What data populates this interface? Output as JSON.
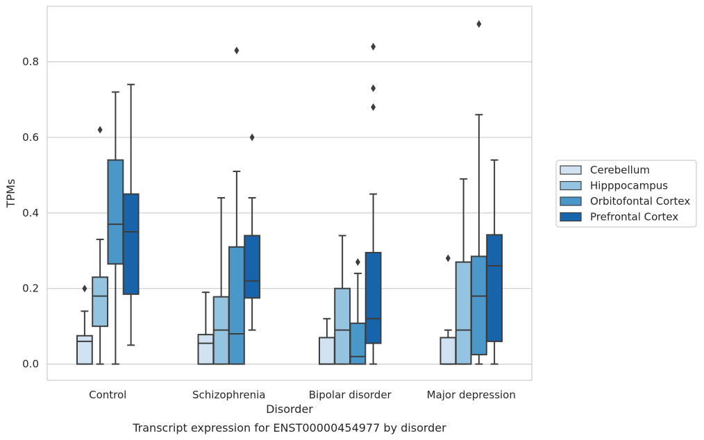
{
  "chart_data": {
    "type": "boxplot",
    "title": "",
    "caption": "Transcript expression for ENST00000454977 by disorder",
    "xlabel": "Disorder",
    "ylabel": "TPMs",
    "ylim": [
      -0.043,
      0.947
    ],
    "yticks": [
      "0.0",
      "0.2",
      "0.4",
      "0.6",
      "0.8"
    ],
    "ytick_values": [
      0.0,
      0.2,
      0.4,
      0.6,
      0.8
    ],
    "grid": "horizontal",
    "legend_position": "right",
    "categories": [
      "Control",
      "Schizophrenia",
      "Bipolar disorder",
      "Major depression"
    ],
    "series": [
      {
        "name": "Cerebellum",
        "color": "#d0e1f2",
        "boxes": [
          {
            "whislo": 0.0,
            "q1": 0.0,
            "med": 0.06,
            "q3": 0.075,
            "whishi": 0.14,
            "fliers": [
              0.2
            ]
          },
          {
            "whislo": 0.0,
            "q1": 0.0,
            "med": 0.055,
            "q3": 0.078,
            "whishi": 0.19,
            "fliers": []
          },
          {
            "whislo": 0.0,
            "q1": 0.0,
            "med": 0.0,
            "q3": 0.07,
            "whishi": 0.12,
            "fliers": []
          },
          {
            "whislo": 0.0,
            "q1": 0.0,
            "med": 0.0,
            "q3": 0.07,
            "whishi": 0.09,
            "fliers": [
              0.28
            ]
          }
        ]
      },
      {
        "name": "Hipppocampus",
        "color": "#94c4df",
        "boxes": [
          {
            "whislo": 0.0,
            "q1": 0.1,
            "med": 0.18,
            "q3": 0.23,
            "whishi": 0.33,
            "fliers": [
              0.62
            ]
          },
          {
            "whislo": 0.0,
            "q1": 0.0,
            "med": 0.09,
            "q3": 0.178,
            "whishi": 0.44,
            "fliers": []
          },
          {
            "whislo": 0.0,
            "q1": 0.0,
            "med": 0.09,
            "q3": 0.2,
            "whishi": 0.34,
            "fliers": []
          },
          {
            "whislo": 0.0,
            "q1": 0.0,
            "med": 0.09,
            "q3": 0.27,
            "whishi": 0.49,
            "fliers": []
          }
        ]
      },
      {
        "name": "Orbitofontal Cortex",
        "color": "#4a98c9",
        "boxes": [
          {
            "whislo": 0.0,
            "q1": 0.265,
            "med": 0.37,
            "q3": 0.54,
            "whishi": 0.72,
            "fliers": []
          },
          {
            "whislo": 0.0,
            "q1": 0.0,
            "med": 0.08,
            "q3": 0.31,
            "whishi": 0.51,
            "fliers": [
              0.83
            ]
          },
          {
            "whislo": 0.0,
            "q1": 0.0,
            "med": 0.02,
            "q3": 0.108,
            "whishi": 0.24,
            "fliers": [
              0.27
            ]
          },
          {
            "whislo": 0.0,
            "q1": 0.025,
            "med": 0.18,
            "q3": 0.285,
            "whishi": 0.66,
            "fliers": [
              0.9
            ]
          }
        ]
      },
      {
        "name": "Prefrontal Cortex",
        "color": "#1764ab",
        "boxes": [
          {
            "whislo": 0.05,
            "q1": 0.185,
            "med": 0.35,
            "q3": 0.45,
            "whishi": 0.74,
            "fliers": []
          },
          {
            "whislo": 0.09,
            "q1": 0.175,
            "med": 0.22,
            "q3": 0.34,
            "whishi": 0.44,
            "fliers": [
              0.6
            ]
          },
          {
            "whislo": 0.0,
            "q1": 0.055,
            "med": 0.12,
            "q3": 0.295,
            "whishi": 0.45,
            "fliers": [
              0.68,
              0.73,
              0.84
            ]
          },
          {
            "whislo": 0.0,
            "q1": 0.06,
            "med": 0.26,
            "q3": 0.342,
            "whishi": 0.54,
            "fliers": []
          }
        ]
      }
    ]
  }
}
